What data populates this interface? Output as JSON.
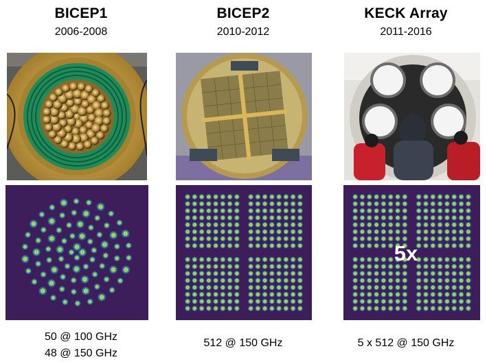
{
  "panels": [
    {
      "title": "BICEP1",
      "years": "2006-2008",
      "caption_lines": [
        "50 @ 100 GHz",
        "48 @ 150 GHz"
      ]
    },
    {
      "title": "BICEP2",
      "years": "2010-2012",
      "caption_lines": [
        "512 @ 150 GHz"
      ]
    },
    {
      "title": "KECK Array",
      "years": "2011-2016",
      "caption_lines": [
        "5 x 512 @ 150 GHz"
      ],
      "overlay": "5x"
    }
  ],
  "colors": {
    "map_background": "#3d1e5a",
    "beam_core": "#c23b22",
    "beam_mid": "#f5e642",
    "beam_outer": "#2ca6a4",
    "gold": "#c9a44a",
    "pcb_green": "#1f8a5a"
  }
}
